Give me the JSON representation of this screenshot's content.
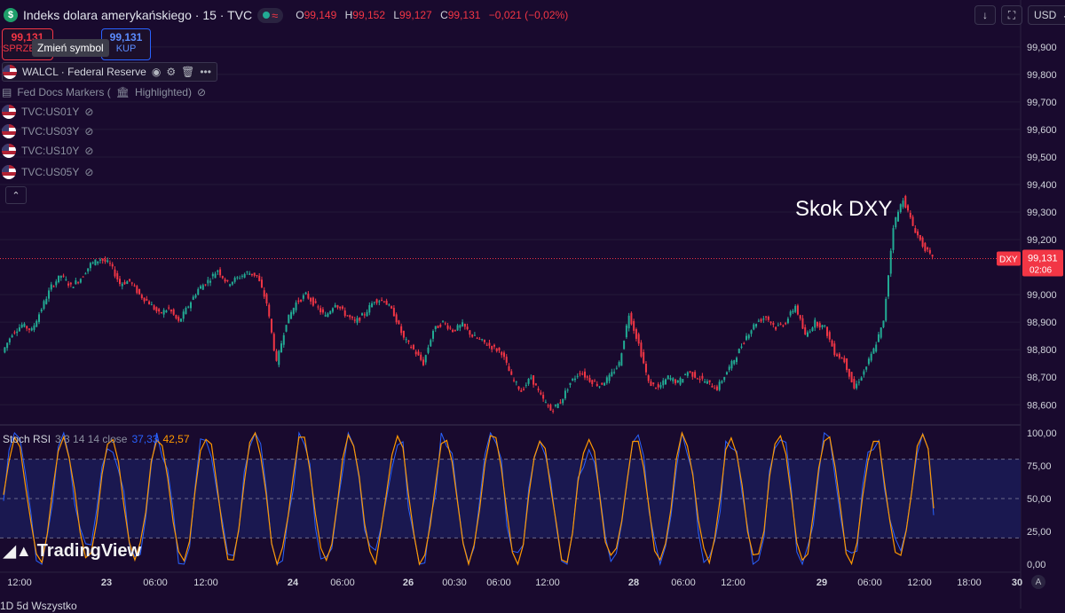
{
  "header": {
    "logo_glyph": "$",
    "title": "Indeks dolara amerykańskiego · 15 · TVC",
    "ohlc": [
      {
        "k": "O",
        "v": "99,149"
      },
      {
        "k": "H",
        "v": "99,152"
      },
      {
        "k": "L",
        "v": "99,127"
      },
      {
        "k": "C",
        "v": "99,131"
      }
    ],
    "change": "−0,021 (−0,02%)",
    "currency": "USD",
    "toolbar_icons": [
      "down-arrow-icon",
      "fullscreen-icon"
    ]
  },
  "trade": {
    "sell_price": "99,131",
    "sell_label": "SPRZEDAJ",
    "buy_price": "99,131",
    "buy_label": "KUP",
    "tooltip": "Zmień symbol"
  },
  "indicators": {
    "main": "WALCL · Federal Reserve",
    "fed_docs": "Fed Docs Markers (",
    "fed_docs_tail": "Highlighted)",
    "symbols": [
      "TVC:US01Y",
      "TVC:US03Y",
      "TVC:US10Y",
      "TVC:US05Y"
    ]
  },
  "rsi": {
    "name": "Stoch RSI",
    "params": "3 3 14 14 close",
    "k_value": "37,33",
    "d_value": "42,57"
  },
  "brand": "TradingView",
  "annotation": "Skok DXY",
  "bottom_bar": "1D 5d Wszystko",
  "corner_button": "A",
  "colors": {
    "background": "#190a2e",
    "up": "#22ab94",
    "down": "#f23645",
    "k_line": "#2962ff",
    "d_line": "#ff9800",
    "rsi_band": "#1a1850"
  },
  "chart_data": [
    {
      "type": "candlestick",
      "title": "Indeks dolara amerykańskiego · 15 · TVC",
      "ylim": [
        98.53,
        99.98
      ],
      "y_ticks": [
        "99,900",
        "99,800",
        "99,700",
        "99,600",
        "99,500",
        "99,400",
        "99,300",
        "99,200",
        "99,000",
        "98,900",
        "98,800",
        "98,700",
        "98,600"
      ],
      "x_ticks": [
        "12:00",
        "23",
        "06:00",
        "12:00",
        "24",
        "06:00",
        "26",
        "00:30",
        "06:00",
        "12:00",
        "28",
        "06:00",
        "12:00",
        "29",
        "06:00",
        "12:00",
        "18:00",
        "30"
      ],
      "last_price": {
        "value": 99.131,
        "label": "99,131",
        "countdown": "02:06",
        "symbol": "DXY"
      },
      "path": [
        [
          0,
          98.79
        ],
        [
          2,
          98.86
        ],
        [
          3,
          98.89
        ],
        [
          4,
          98.87
        ],
        [
          5,
          98.95
        ],
        [
          6,
          99.03
        ],
        [
          7,
          99.07
        ],
        [
          8,
          99.03
        ],
        [
          9,
          99.06
        ],
        [
          10,
          99.11
        ],
        [
          11,
          99.13
        ],
        [
          12,
          99.11
        ],
        [
          13,
          99.04
        ],
        [
          14,
          99.05
        ],
        [
          15,
          99.0
        ],
        [
          16,
          98.97
        ],
        [
          17,
          98.93
        ],
        [
          18,
          98.95
        ],
        [
          19,
          98.9
        ],
        [
          20,
          98.96
        ],
        [
          21,
          99.02
        ],
        [
          22,
          99.05
        ],
        [
          23,
          99.09
        ],
        [
          24,
          99.04
        ],
        [
          25,
          99.06
        ],
        [
          26,
          99.08
        ],
        [
          27,
          99.07
        ],
        [
          28,
          98.97
        ],
        [
          29,
          98.75
        ],
        [
          30,
          98.9
        ],
        [
          31,
          98.97
        ],
        [
          32,
          99.0
        ],
        [
          33,
          98.96
        ],
        [
          34,
          98.92
        ],
        [
          35,
          98.97
        ],
        [
          36,
          98.93
        ],
        [
          37,
          98.9
        ],
        [
          38,
          98.93
        ],
        [
          39,
          98.98
        ],
        [
          40,
          98.98
        ],
        [
          41,
          98.93
        ],
        [
          42,
          98.84
        ],
        [
          43,
          98.8
        ],
        [
          44,
          98.75
        ],
        [
          45,
          98.87
        ],
        [
          46,
          98.9
        ],
        [
          47,
          98.87
        ],
        [
          48,
          98.89
        ],
        [
          49,
          98.85
        ],
        [
          50,
          98.83
        ],
        [
          51,
          98.81
        ],
        [
          52,
          98.79
        ],
        [
          53,
          98.7
        ],
        [
          54,
          98.65
        ],
        [
          55,
          98.7
        ],
        [
          56,
          98.63
        ],
        [
          57,
          98.58
        ],
        [
          58,
          98.61
        ],
        [
          59,
          98.68
        ],
        [
          60,
          98.72
        ],
        [
          61,
          98.69
        ],
        [
          62,
          98.67
        ],
        [
          63,
          98.7
        ],
        [
          64,
          98.75
        ],
        [
          65,
          98.93
        ],
        [
          66,
          98.82
        ],
        [
          67,
          98.68
        ],
        [
          68,
          98.66
        ],
        [
          69,
          98.7
        ],
        [
          70,
          98.68
        ],
        [
          71,
          98.72
        ],
        [
          72,
          98.7
        ],
        [
          73,
          98.68
        ],
        [
          74,
          98.66
        ],
        [
          75,
          98.72
        ],
        [
          76,
          98.78
        ],
        [
          77,
          98.85
        ],
        [
          78,
          98.9
        ],
        [
          79,
          98.92
        ],
        [
          80,
          98.88
        ],
        [
          81,
          98.9
        ],
        [
          82,
          98.96
        ],
        [
          83,
          98.85
        ],
        [
          84,
          98.9
        ],
        [
          85,
          98.88
        ],
        [
          86,
          98.79
        ],
        [
          87,
          98.76
        ],
        [
          88,
          98.66
        ],
        [
          89,
          98.72
        ],
        [
          90,
          98.8
        ],
        [
          91,
          98.9
        ],
        [
          92,
          99.25
        ],
        [
          93,
          99.35
        ],
        [
          94,
          99.25
        ],
        [
          95,
          99.18
        ],
        [
          96,
          99.13
        ]
      ]
    },
    {
      "type": "line",
      "title": "Stoch RSI 3 3 14 14 close",
      "ylim": [
        0,
        100
      ],
      "y_ticks": [
        "100,00",
        "75,00",
        "50,00",
        "25,00",
        "0,00"
      ],
      "bands": [
        20,
        80
      ],
      "series": [
        {
          "name": "K",
          "last": 37.33
        },
        {
          "name": "D",
          "last": 42.57
        }
      ]
    }
  ]
}
